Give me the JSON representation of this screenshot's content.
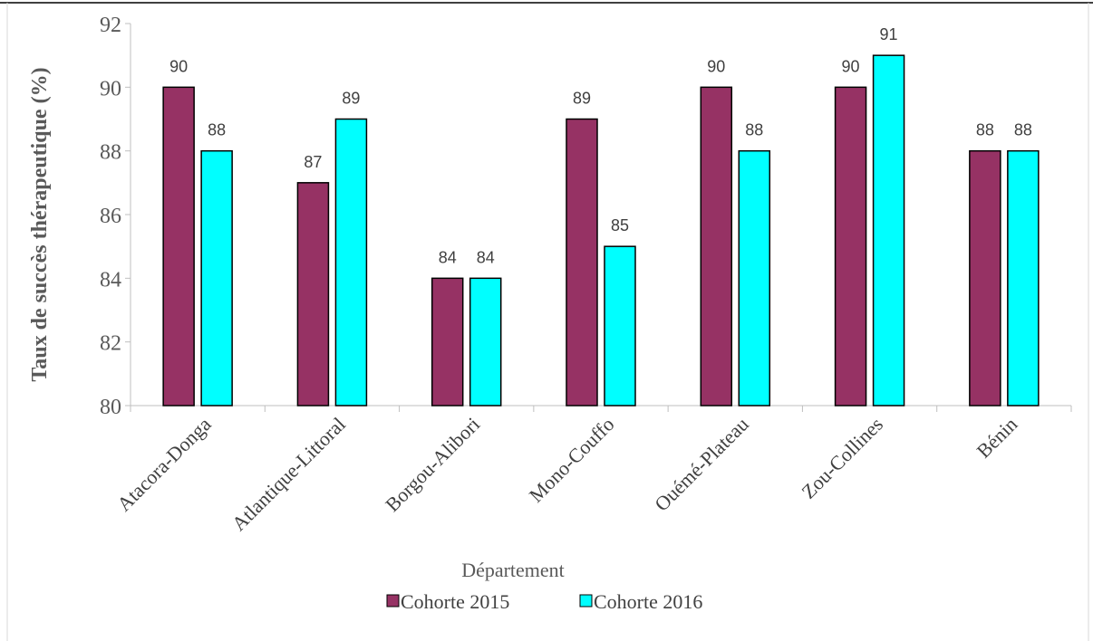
{
  "chart_data": {
    "type": "bar",
    "title": "",
    "xlabel": "Département",
    "ylabel": "Taux de succès thérapeutique (%)",
    "ylim": [
      80,
      92
    ],
    "yticks": [
      "80",
      "82",
      "84",
      "86",
      "88",
      "90",
      "92"
    ],
    "grid": false,
    "legend_position": "bottom",
    "categories": [
      "Atacora-Donga",
      "Atlantique-Littoral",
      "Borgou-Alibori",
      "Mono-Couffo",
      "Ouémé-Plateau",
      "Zou-Collines",
      "Bénin"
    ],
    "series": [
      {
        "name": "Cohorte 2015",
        "color": "#963264",
        "values": [
          90,
          87,
          84,
          89,
          90,
          90,
          88
        ]
      },
      {
        "name": "Cohorte 2016",
        "color": "#00ffff",
        "values": [
          88,
          89,
          84,
          85,
          88,
          91,
          88
        ]
      }
    ]
  }
}
